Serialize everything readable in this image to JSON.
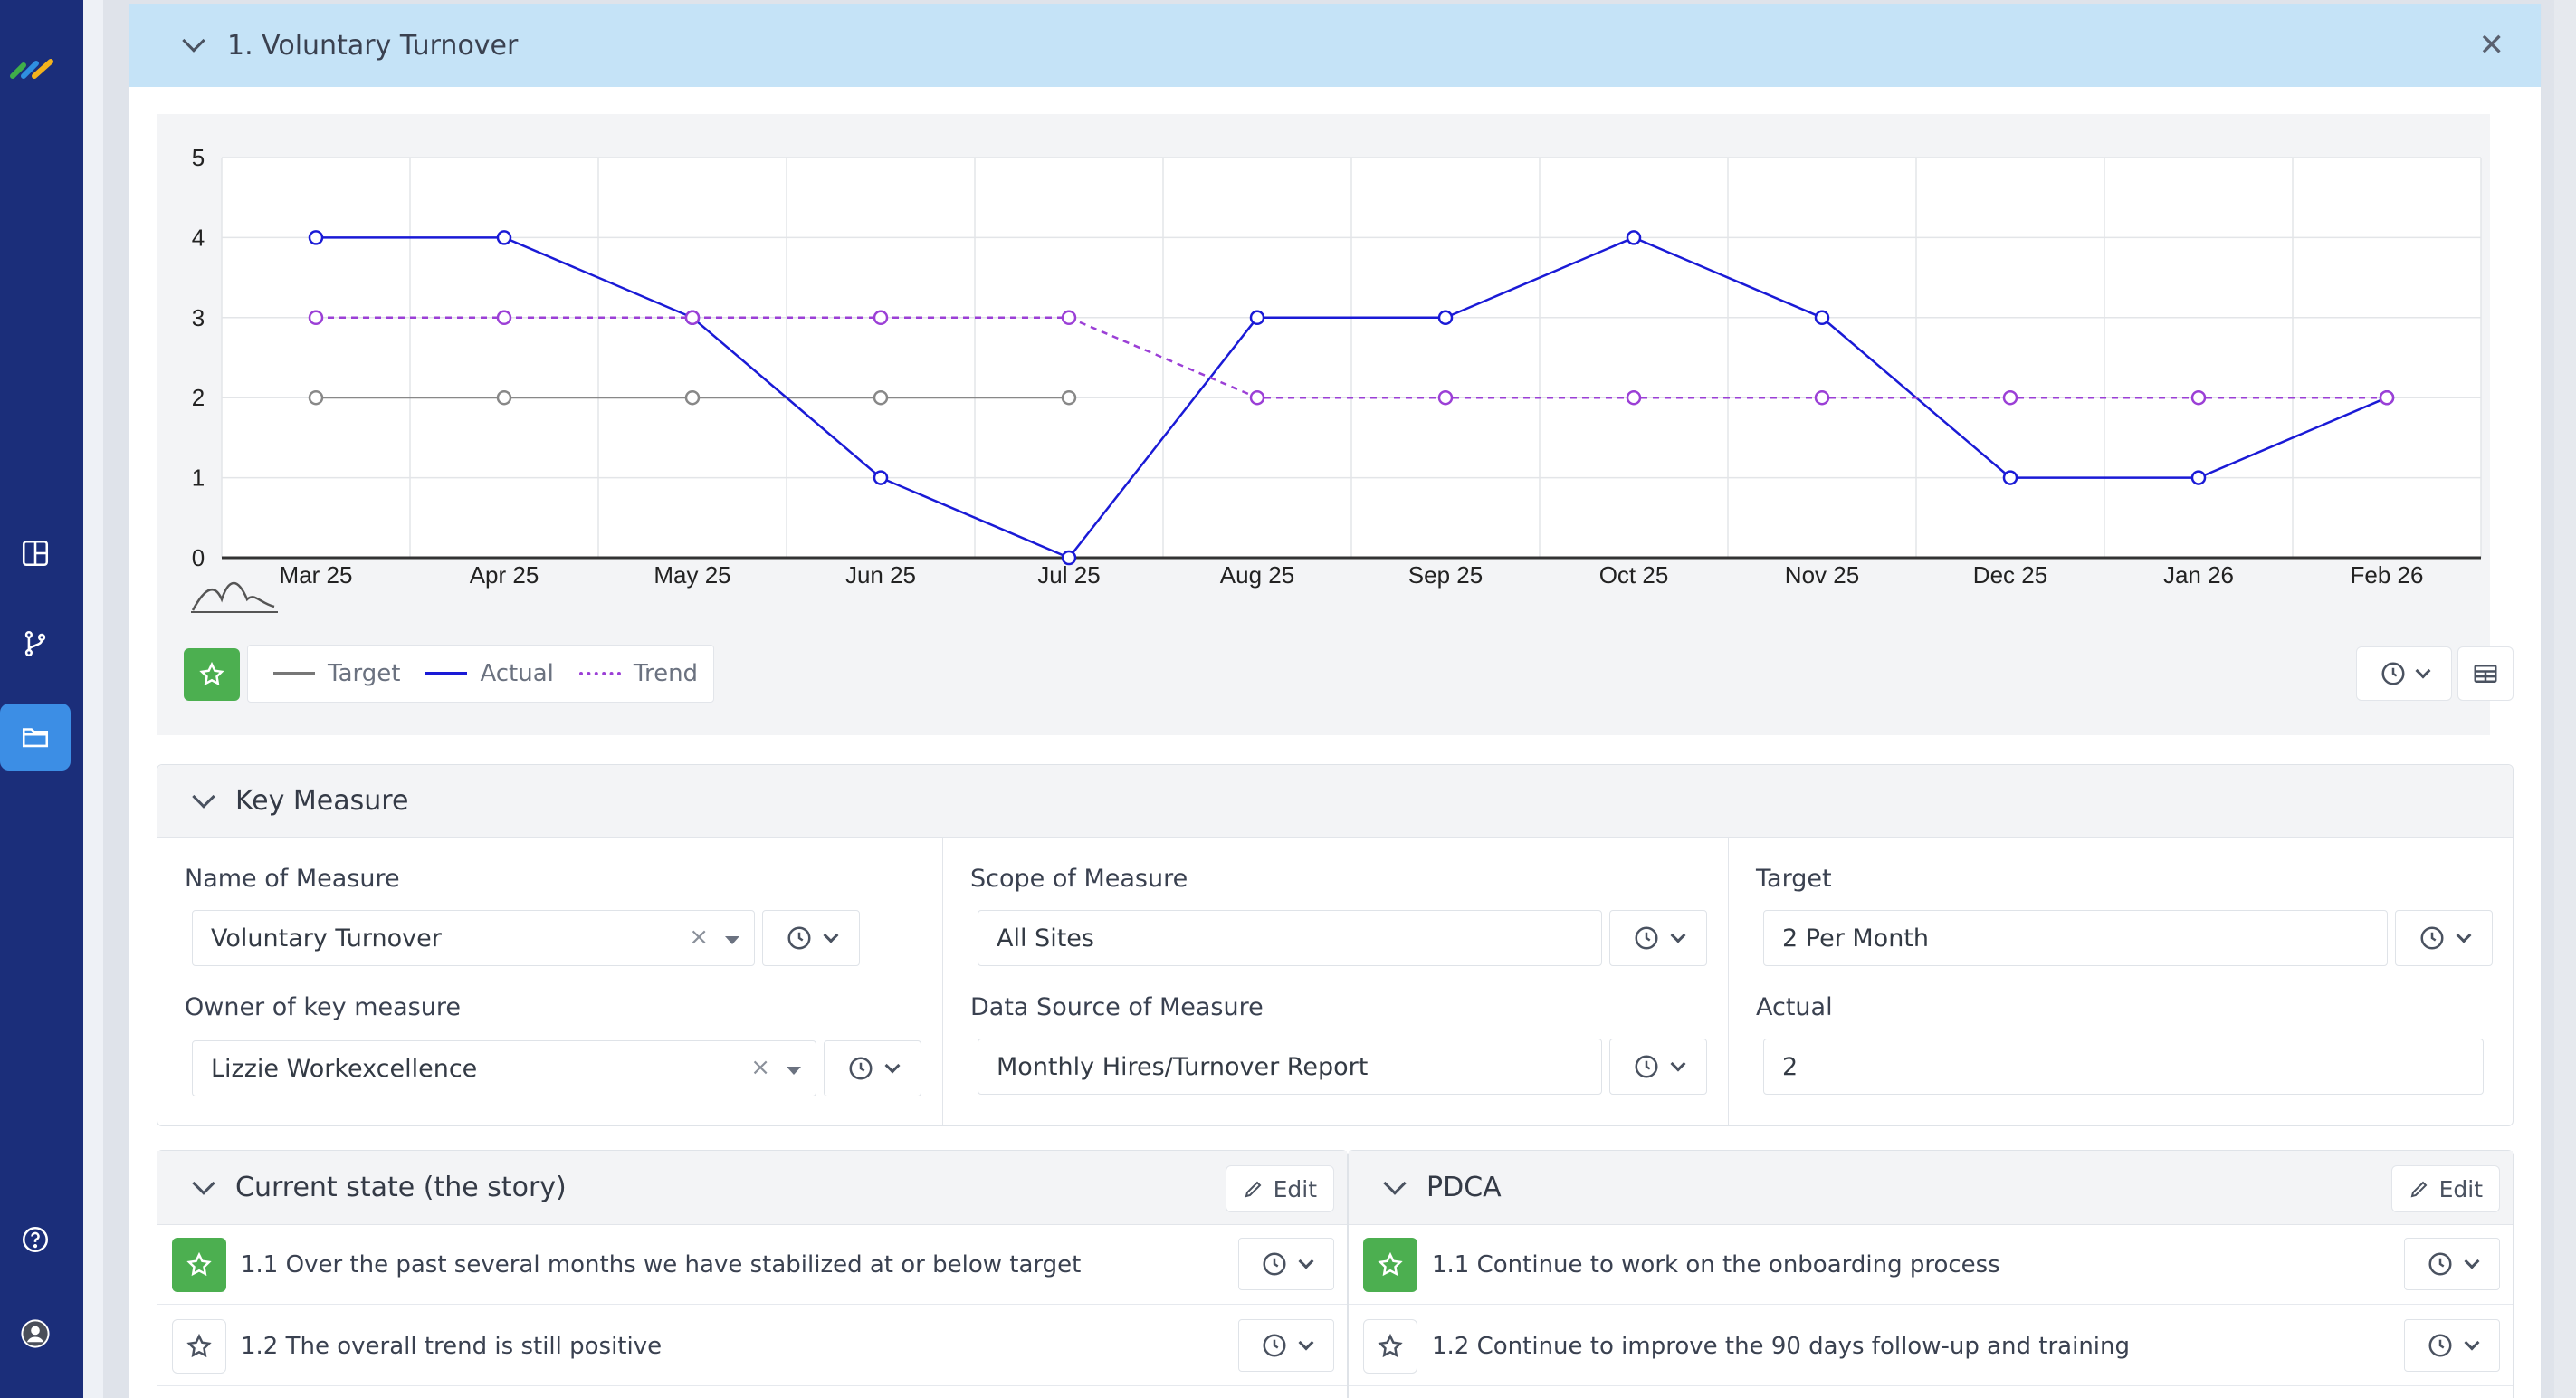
{
  "colors": {
    "sidebar": "#1b2e7a",
    "header_bg": "#c5e3f7",
    "accent": "#3c8ee5",
    "actual": "#1a1ad6",
    "trend": "#9b3fd6",
    "target": "#888888",
    "star_green": "#4caf50"
  },
  "sidebar": {
    "items": [
      {
        "icon": "layout-icon"
      },
      {
        "icon": "git-branch-icon"
      },
      {
        "icon": "folder-icon",
        "active": true
      },
      {
        "icon": "help-icon"
      },
      {
        "icon": "user-avatar-icon"
      }
    ]
  },
  "card": {
    "title": "1. Voluntary Turnover"
  },
  "chart_data": {
    "type": "line",
    "categories": [
      "Mar 25",
      "Apr 25",
      "May 25",
      "Jun 25",
      "Jul 25",
      "Aug 25",
      "Sep 25",
      "Oct 25",
      "Nov 25",
      "Dec 25",
      "Jan 26",
      "Feb 26"
    ],
    "ylim": [
      0,
      5
    ],
    "yticks": [
      0,
      1,
      2,
      3,
      4,
      5
    ],
    "grid": true,
    "series": [
      {
        "name": "Target",
        "color": "#888888",
        "style": "solid",
        "values": [
          2,
          2,
          2,
          2,
          2,
          null,
          null,
          null,
          null,
          null,
          null,
          null
        ]
      },
      {
        "name": "Actual",
        "color": "#1a1ad6",
        "style": "solid",
        "values": [
          4,
          4,
          3,
          1,
          0,
          3,
          3,
          4,
          3,
          1,
          1,
          2
        ]
      },
      {
        "name": "Trend",
        "color": "#9b3fd6",
        "style": "dotted",
        "values": [
          3,
          3,
          3,
          3,
          3,
          2,
          2,
          2,
          2,
          2,
          2,
          2
        ]
      }
    ]
  },
  "legend": {
    "target": "Target",
    "actual": "Actual",
    "trend": "Trend"
  },
  "key_measure": {
    "title": "Key Measure",
    "name_label": "Name of Measure",
    "name_value": "Voluntary Turnover",
    "owner_label": "Owner of key measure",
    "owner_value": "Lizzie Workexcellence",
    "scope_label": "Scope of Measure",
    "scope_value": "All Sites",
    "source_label": "Data Source of Measure",
    "source_value": "Monthly Hires/Turnover Report",
    "target_label": "Target",
    "target_value": "2 Per Month",
    "actual_label": "Actual",
    "actual_value": "2",
    "clear_glyph": "×"
  },
  "current_state": {
    "title": "Current state (the story)",
    "edit_label": "Edit",
    "items": [
      {
        "text": "1.1 Over the past several months we have stabilized at or below target",
        "starred": true
      },
      {
        "text": "1.2 The overall trend is still positive",
        "starred": false
      }
    ]
  },
  "pdca": {
    "title": "PDCA",
    "edit_label": "Edit",
    "items": [
      {
        "text": "1.1 Continue to work on the onboarding process",
        "starred": true
      },
      {
        "text": "1.2 Continue to improve the 90 days follow-up and training",
        "starred": false
      }
    ]
  }
}
